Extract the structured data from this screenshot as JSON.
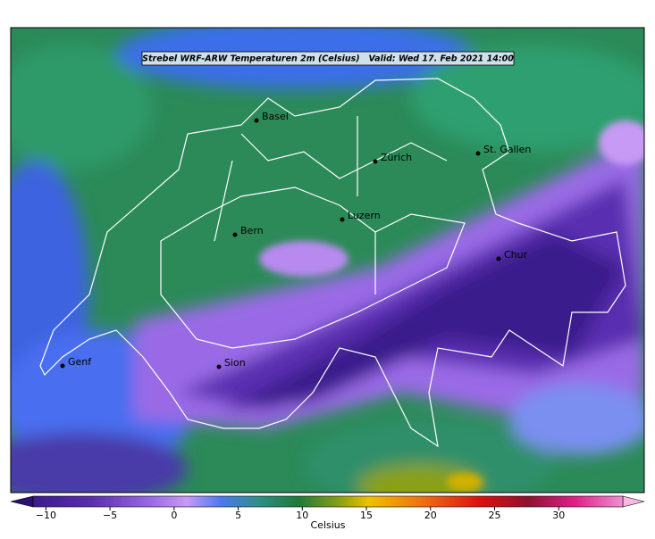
{
  "map": {
    "title": "Strebel WRF-ARW Temperaturen 2m (Celsius)   Valid: Wed 17. Feb 2021 14:00",
    "cities": [
      "Basel",
      "Zürich",
      "St. Gallen",
      "Luzern",
      "Bern",
      "Chur",
      "Genf",
      "Sion"
    ]
  },
  "colorbar": {
    "label": "Celsius",
    "range": [
      -11,
      35
    ],
    "ticks": [
      {
        "value": -10,
        "label": "−10"
      },
      {
        "value": -5,
        "label": "−5"
      },
      0,
      5,
      10,
      15,
      20,
      25,
      30
    ]
  }
}
